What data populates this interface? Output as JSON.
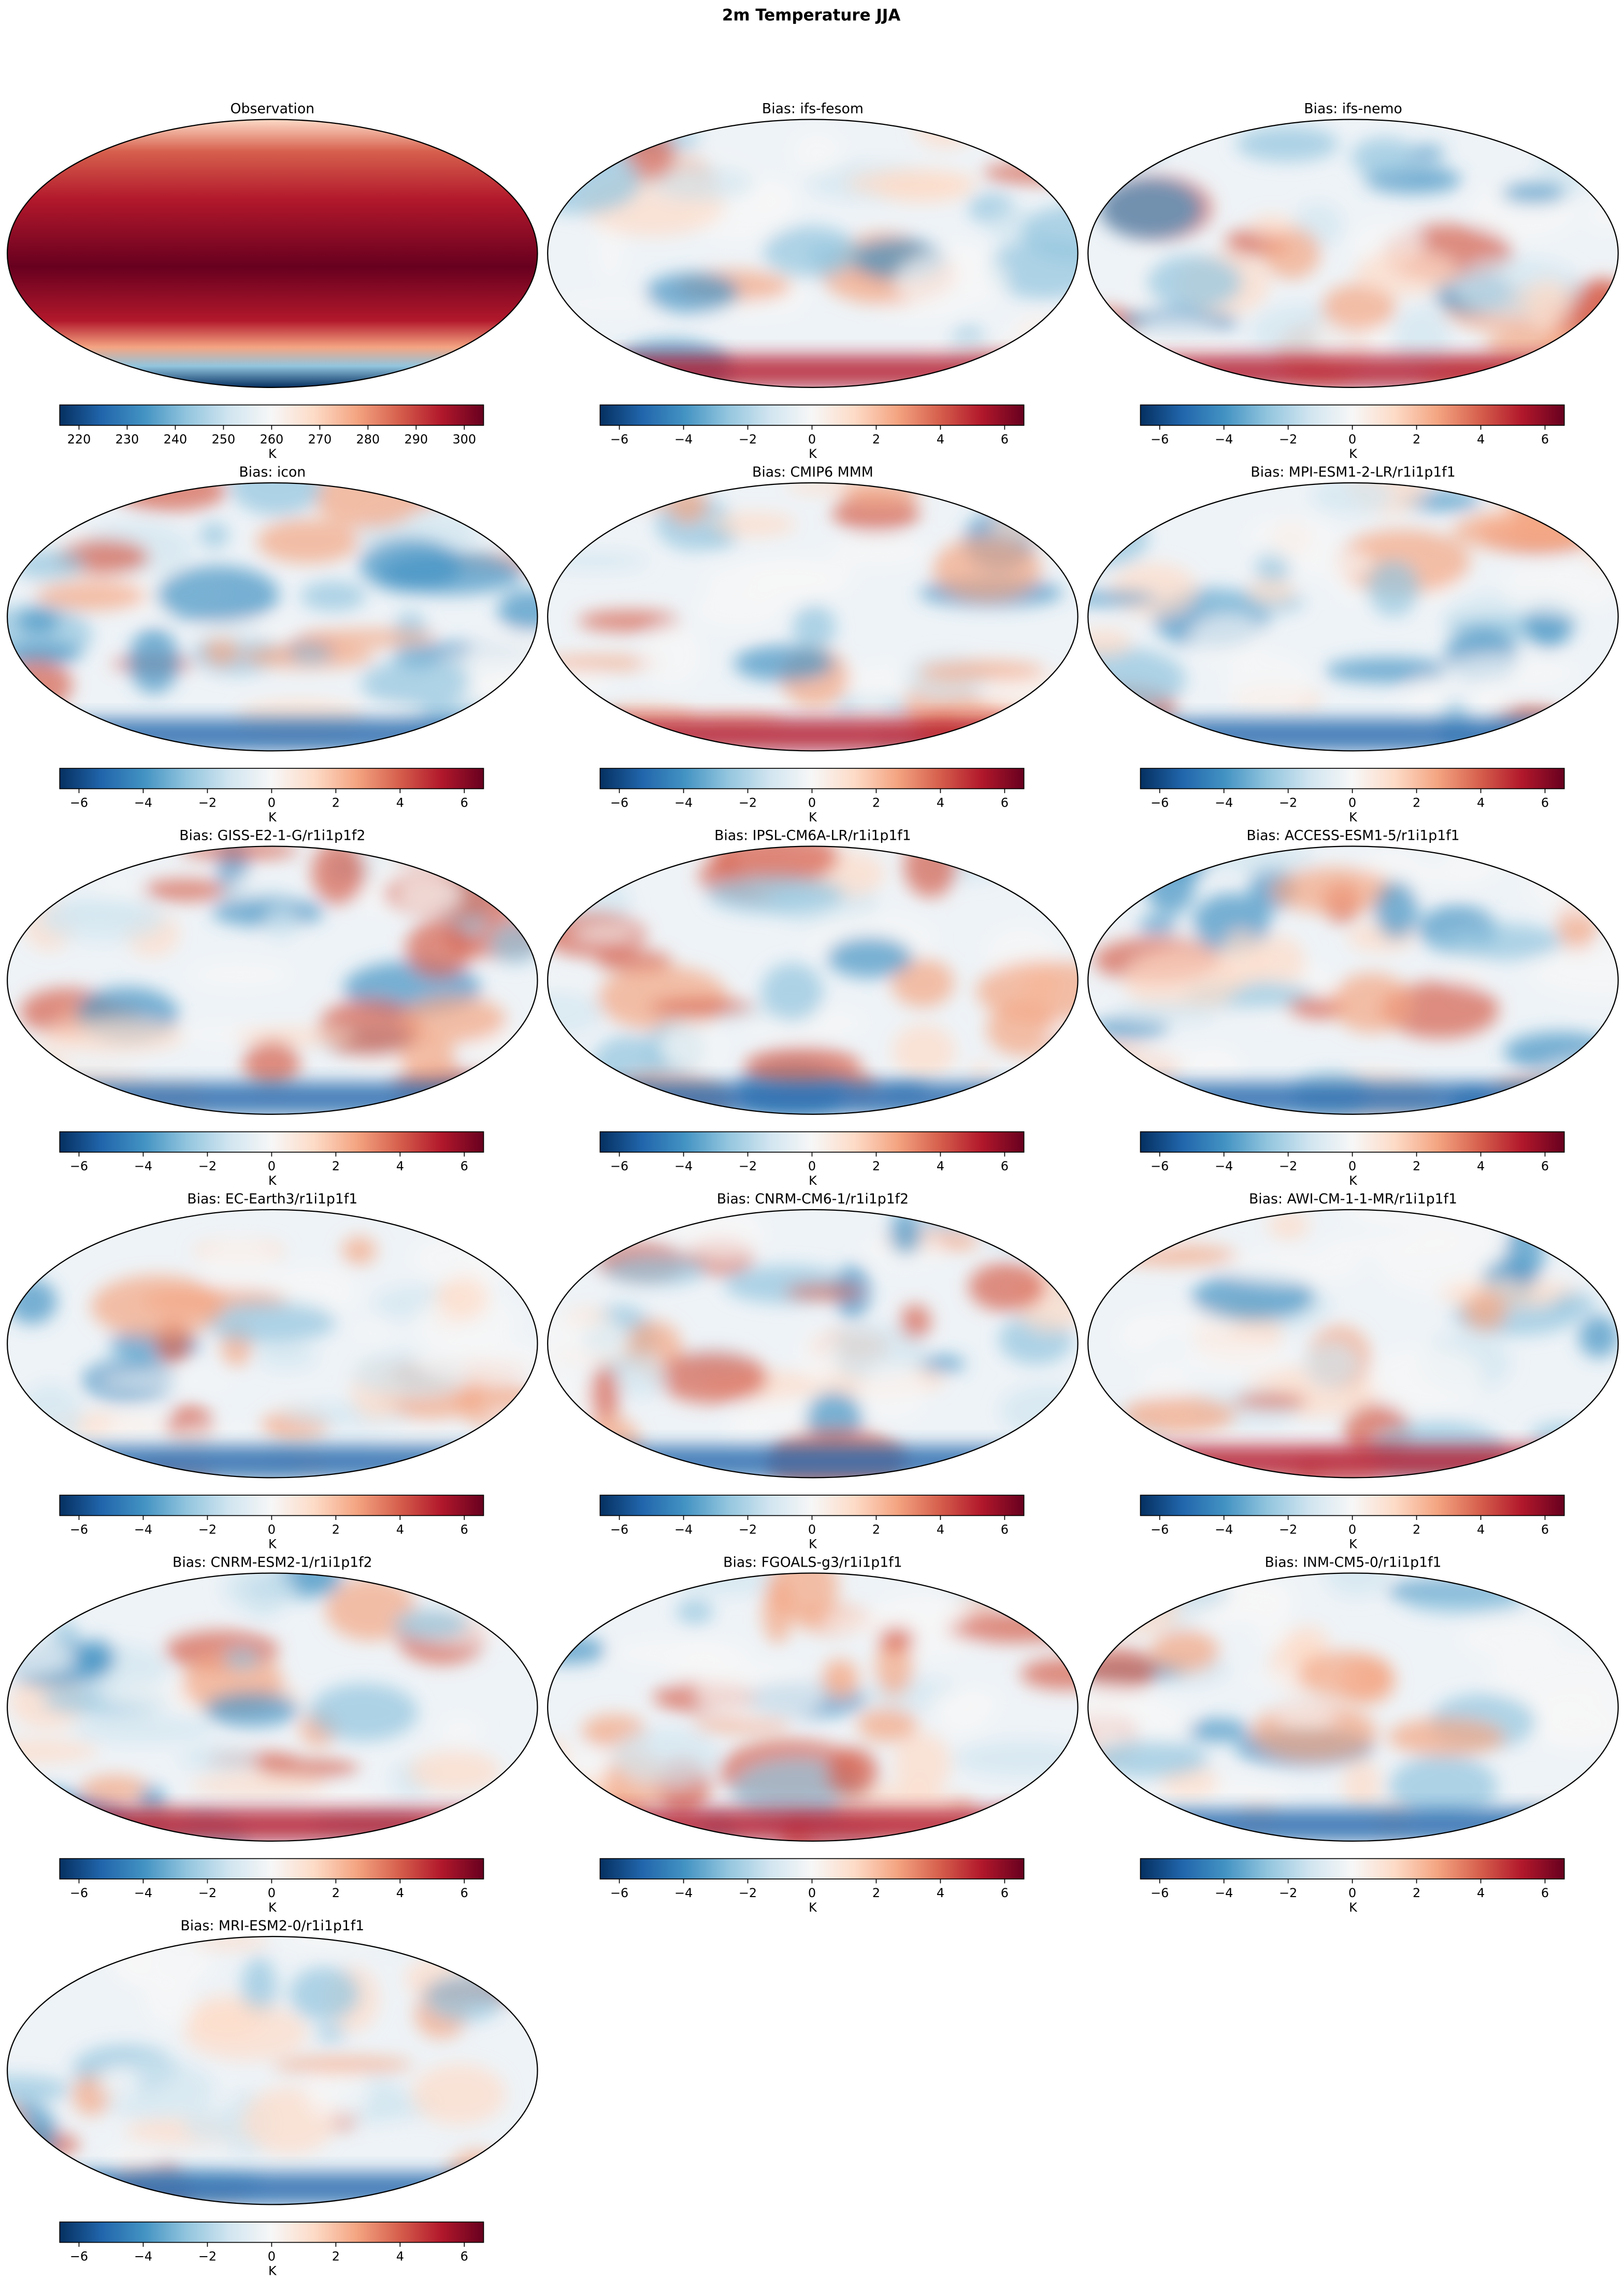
{
  "title": "2m Temperature JJA",
  "colormap": [
    "#053061",
    "#2166ac",
    "#4393c3",
    "#92c5de",
    "#d1e5f0",
    "#f7f7f7",
    "#fddbc7",
    "#f4a582",
    "#d6604d",
    "#b2182b",
    "#67001f"
  ],
  "chart_data": [
    {
      "type": "map",
      "title": "Observation",
      "colorbar": {
        "label": "K",
        "lim": [
          216,
          304
        ],
        "ticks": [
          220,
          230,
          240,
          250,
          260,
          270,
          280,
          290,
          300
        ]
      }
    },
    {
      "type": "map",
      "title": "Bias: ifs-fesom",
      "colorbar": {
        "label": "K",
        "lim": [
          -6.6,
          6.6
        ],
        "ticks": [
          {
            "value": -6,
            "label": "−6"
          },
          {
            "value": -4,
            "label": "−4"
          },
          {
            "value": -2,
            "label": "−2"
          },
          0,
          2,
          4,
          6
        ]
      }
    },
    {
      "type": "map",
      "title": "Bias: ifs-nemo",
      "colorbar": {
        "label": "K",
        "lim": [
          -6.6,
          6.6
        ],
        "ticks": [
          {
            "value": -6,
            "label": "−6"
          },
          {
            "value": -4,
            "label": "−4"
          },
          {
            "value": -2,
            "label": "−2"
          },
          0,
          2,
          4,
          6
        ]
      }
    },
    {
      "type": "map",
      "title": "Bias: icon",
      "colorbar": {
        "label": "K",
        "lim": [
          -6.6,
          6.6
        ],
        "ticks": [
          {
            "value": -6,
            "label": "−6"
          },
          {
            "value": -4,
            "label": "−4"
          },
          {
            "value": -2,
            "label": "−2"
          },
          0,
          2,
          4,
          6
        ]
      }
    },
    {
      "type": "map",
      "title": "Bias: CMIP6 MMM",
      "colorbar": {
        "label": "K",
        "lim": [
          -6.6,
          6.6
        ],
        "ticks": [
          {
            "value": -6,
            "label": "−6"
          },
          {
            "value": -4,
            "label": "−4"
          },
          {
            "value": -2,
            "label": "−2"
          },
          0,
          2,
          4,
          6
        ]
      }
    },
    {
      "type": "map",
      "title": "Bias: MPI-ESM1-2-LR/r1i1p1f1",
      "colorbar": {
        "label": "K",
        "lim": [
          -6.6,
          6.6
        ],
        "ticks": [
          {
            "value": -6,
            "label": "−6"
          },
          {
            "value": -4,
            "label": "−4"
          },
          {
            "value": -2,
            "label": "−2"
          },
          0,
          2,
          4,
          6
        ]
      }
    },
    {
      "type": "map",
      "title": "Bias: GISS-E2-1-G/r1i1p1f2",
      "colorbar": {
        "label": "K",
        "lim": [
          -6.6,
          6.6
        ],
        "ticks": [
          {
            "value": -6,
            "label": "−6"
          },
          {
            "value": -4,
            "label": "−4"
          },
          {
            "value": -2,
            "label": "−2"
          },
          0,
          2,
          4,
          6
        ]
      }
    },
    {
      "type": "map",
      "title": "Bias: IPSL-CM6A-LR/r1i1p1f1",
      "colorbar": {
        "label": "K",
        "lim": [
          -6.6,
          6.6
        ],
        "ticks": [
          {
            "value": -6,
            "label": "−6"
          },
          {
            "value": -4,
            "label": "−4"
          },
          {
            "value": -2,
            "label": "−2"
          },
          0,
          2,
          4,
          6
        ]
      }
    },
    {
      "type": "map",
      "title": "Bias: ACCESS-ESM1-5/r1i1p1f1",
      "colorbar": {
        "label": "K",
        "lim": [
          -6.6,
          6.6
        ],
        "ticks": [
          {
            "value": -6,
            "label": "−6"
          },
          {
            "value": -4,
            "label": "−4"
          },
          {
            "value": -2,
            "label": "−2"
          },
          0,
          2,
          4,
          6
        ]
      }
    },
    {
      "type": "map",
      "title": "Bias: EC-Earth3/r1i1p1f1",
      "colorbar": {
        "label": "K",
        "lim": [
          -6.6,
          6.6
        ],
        "ticks": [
          {
            "value": -6,
            "label": "−6"
          },
          {
            "value": -4,
            "label": "−4"
          },
          {
            "value": -2,
            "label": "−2"
          },
          0,
          2,
          4,
          6
        ]
      }
    },
    {
      "type": "map",
      "title": "Bias: CNRM-CM6-1/r1i1p1f2",
      "colorbar": {
        "label": "K",
        "lim": [
          -6.6,
          6.6
        ],
        "ticks": [
          {
            "value": -6,
            "label": "−6"
          },
          {
            "value": -4,
            "label": "−4"
          },
          {
            "value": -2,
            "label": "−2"
          },
          0,
          2,
          4,
          6
        ]
      }
    },
    {
      "type": "map",
      "title": "Bias: AWI-CM-1-1-MR/r1i1p1f1",
      "colorbar": {
        "label": "K",
        "lim": [
          -6.6,
          6.6
        ],
        "ticks": [
          {
            "value": -6,
            "label": "−6"
          },
          {
            "value": -4,
            "label": "−4"
          },
          {
            "value": -2,
            "label": "−2"
          },
          0,
          2,
          4,
          6
        ]
      }
    },
    {
      "type": "map",
      "title": "Bias: CNRM-ESM2-1/r1i1p1f2",
      "colorbar": {
        "label": "K",
        "lim": [
          -6.6,
          6.6
        ],
        "ticks": [
          {
            "value": -6,
            "label": "−6"
          },
          {
            "value": -4,
            "label": "−4"
          },
          {
            "value": -2,
            "label": "−2"
          },
          0,
          2,
          4,
          6
        ]
      }
    },
    {
      "type": "map",
      "title": "Bias: FGOALS-g3/r1i1p1f1",
      "colorbar": {
        "label": "K",
        "lim": [
          -6.6,
          6.6
        ],
        "ticks": [
          {
            "value": -6,
            "label": "−6"
          },
          {
            "value": -4,
            "label": "−4"
          },
          {
            "value": -2,
            "label": "−2"
          },
          0,
          2,
          4,
          6
        ]
      }
    },
    {
      "type": "map",
      "title": "Bias: INM-CM5-0/r1i1p1f1",
      "colorbar": {
        "label": "K",
        "lim": [
          -6.6,
          6.6
        ],
        "ticks": [
          {
            "value": -6,
            "label": "−6"
          },
          {
            "value": -4,
            "label": "−4"
          },
          {
            "value": -2,
            "label": "−2"
          },
          0,
          2,
          4,
          6
        ]
      }
    },
    {
      "type": "map",
      "title": "Bias: MRI-ESM2-0/r1i1p1f1",
      "colorbar": {
        "label": "K",
        "lim": [
          -6.6,
          6.6
        ],
        "ticks": [
          {
            "value": -6,
            "label": "−6"
          },
          {
            "value": -4,
            "label": "−4"
          },
          {
            "value": -2,
            "label": "−2"
          },
          0,
          2,
          4,
          6
        ]
      }
    }
  ]
}
